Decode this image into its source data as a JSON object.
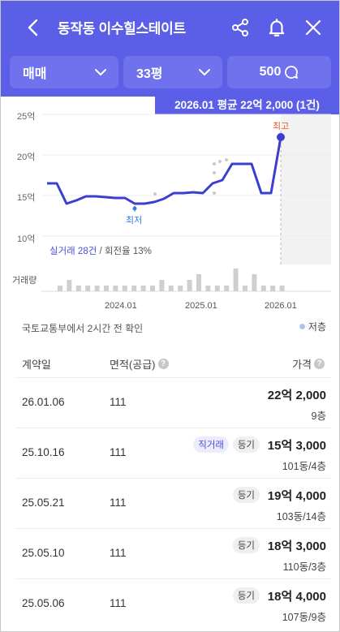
{
  "header": {
    "title": "동작동 이수힐스테이트",
    "filters": {
      "deal_type": "매매",
      "size": "33평",
      "search_value": "500"
    }
  },
  "chart": {
    "average_badge": "2026.01 평균 22억 2,000 (1건)",
    "y_ticks": [
      "25억",
      "20억",
      "15억",
      "10억"
    ],
    "max_label": "최고",
    "min_label": "최저",
    "stats_count": "실거래 28건",
    "stats_turnover": " / 회전율 13%",
    "volume_label": "거래량",
    "x_ticks": [
      "2024.01",
      "2025.01",
      "2026.01"
    ]
  },
  "chart_data": {
    "type": "line",
    "ylim": [
      10,
      25
    ],
    "y_unit": "억",
    "series": [
      {
        "values_approx": [
          16.5,
          16.5,
          14.0,
          14.4,
          14.9,
          14.9,
          14.8,
          14.7,
          14.7,
          14.0,
          14.0,
          14.2,
          14.6,
          15.3,
          15.3,
          15.4,
          15.3,
          16.5,
          16.9,
          18.9,
          18.9,
          18.9,
          15.3,
          15.3,
          22.2
        ]
      }
    ],
    "highlight_latest": 22.2,
    "max_marker": 22.2,
    "min_marker": 14.0,
    "volume": [
      1,
      2,
      1,
      1,
      1,
      1,
      1,
      1,
      1,
      1,
      1,
      2,
      1,
      1,
      2,
      3,
      1,
      1,
      1,
      4,
      1,
      3,
      1,
      1,
      1
    ]
  },
  "info": {
    "confirm_text": "국토교통부에서 2시간 전 확인",
    "legend_label": "저층"
  },
  "table": {
    "headers": {
      "date": "계약일",
      "area": "면적(공급)",
      "price": "가격"
    },
    "rows": [
      {
        "date": "26.01.06",
        "area": "111",
        "price": "22억 2,000",
        "sub": "9층",
        "tags": []
      },
      {
        "date": "25.10.16",
        "area": "111",
        "price": "15억 3,000",
        "sub": "101동/4층",
        "tags": [
          "직거래",
          "등기"
        ]
      },
      {
        "date": "25.05.21",
        "area": "111",
        "price": "19억 4,000",
        "sub": "103동/14층",
        "tags": [
          "등기"
        ]
      },
      {
        "date": "25.05.10",
        "area": "111",
        "price": "18억 3,000",
        "sub": "110동/3층",
        "tags": [
          "등기"
        ]
      },
      {
        "date": "25.05.06",
        "area": "111",
        "price": "18억 4,000",
        "sub": "107동/9층",
        "tags": [
          "등기"
        ]
      }
    ]
  },
  "colors": {
    "brand": "#5b5ee6",
    "line": "#3b3fd0",
    "max_label": "#e65a2a",
    "min_label": "#3a7be0"
  }
}
